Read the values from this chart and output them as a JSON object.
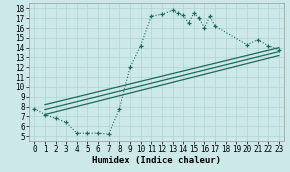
{
  "xlabel": "Humidex (Indice chaleur)",
  "xlim": [
    -0.5,
    23.5
  ],
  "ylim": [
    4.5,
    18.5
  ],
  "xticks": [
    0,
    1,
    2,
    3,
    4,
    5,
    6,
    7,
    8,
    9,
    10,
    11,
    12,
    13,
    14,
    15,
    16,
    17,
    18,
    19,
    20,
    21,
    22,
    23
  ],
  "yticks": [
    5,
    6,
    7,
    8,
    9,
    10,
    11,
    12,
    13,
    14,
    15,
    16,
    17,
    18
  ],
  "background_color": "#cce8e8",
  "line_color": "#1a6b5a",
  "main_x": [
    0,
    1,
    2,
    3,
    4,
    5,
    6,
    7,
    8,
    9,
    10,
    11,
    12,
    13,
    13.5,
    14,
    14.5,
    15,
    15.5,
    16,
    16.5,
    17,
    20,
    21,
    22,
    23
  ],
  "main_y": [
    7.8,
    7.2,
    6.8,
    6.4,
    5.3,
    5.3,
    5.3,
    5.2,
    7.8,
    12.0,
    14.2,
    17.2,
    17.4,
    17.8,
    17.5,
    17.3,
    16.5,
    17.5,
    17.0,
    16.0,
    17.2,
    16.2,
    14.3,
    14.8,
    14.2,
    13.8
  ],
  "reg_line1_x": [
    1,
    23
  ],
  "reg_line1_y": [
    7.2,
    13.2
  ],
  "reg_line2_x": [
    1,
    23
  ],
  "reg_line2_y": [
    7.7,
    13.6
  ],
  "reg_line3_x": [
    1,
    23
  ],
  "reg_line3_y": [
    8.2,
    14.0
  ],
  "grid_color": "#b0d4d4",
  "tick_fontsize": 5.5,
  "xlabel_fontsize": 6.5
}
